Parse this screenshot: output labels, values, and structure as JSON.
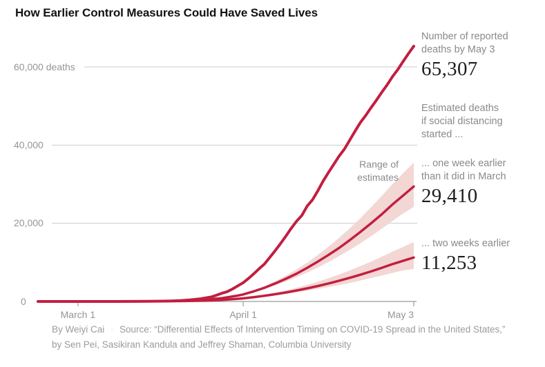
{
  "page": {
    "title": "How Earlier Control Measures Could Have Saved Lives"
  },
  "chart_data": {
    "type": "line",
    "title": "How Earlier Control Measures Could Have Saved Lives",
    "xlabel": "",
    "ylabel": "deaths",
    "grid": true,
    "x_axis": {
      "unit": "days since March 1",
      "ticks": [
        {
          "day": 0,
          "label": "March 1"
        },
        {
          "day": 31,
          "label": "April 1"
        },
        {
          "day": 63,
          "label": "May 3"
        }
      ]
    },
    "y_axis": {
      "range": [
        0,
        60000
      ],
      "gridlines": [
        {
          "value": 60000,
          "label": "60,000 deaths"
        },
        {
          "value": 40000,
          "label": "40,000"
        },
        {
          "value": 20000,
          "label": "20,000"
        },
        {
          "value": 0,
          "label": "0"
        }
      ]
    },
    "band_label": "Range of estimates",
    "series": [
      {
        "name": "reported_deaths",
        "end_label": "Number of reported deaths by May 3",
        "end_value": 65307,
        "points": [
          [
            -7.5,
            0
          ],
          [
            0,
            1
          ],
          [
            7,
            11
          ],
          [
            10,
            30
          ],
          [
            13,
            49
          ],
          [
            15,
            69
          ],
          [
            17,
            110
          ],
          [
            19,
            210
          ],
          [
            21,
            390
          ],
          [
            23,
            680
          ],
          [
            25,
            1150
          ],
          [
            26,
            1600
          ],
          [
            27,
            2100
          ],
          [
            28,
            2500
          ],
          [
            29,
            3200
          ],
          [
            30,
            4000
          ],
          [
            31,
            4800
          ],
          [
            32,
            5900
          ],
          [
            33,
            7100
          ],
          [
            34,
            8400
          ],
          [
            35,
            9600
          ],
          [
            36,
            11300
          ],
          [
            37,
            13000
          ],
          [
            38,
            14800
          ],
          [
            39,
            16700
          ],
          [
            40,
            18700
          ],
          [
            41,
            20500
          ],
          [
            42,
            22000
          ],
          [
            43,
            24400
          ],
          [
            44,
            26000
          ],
          [
            45,
            28300
          ],
          [
            46,
            30800
          ],
          [
            47,
            33000
          ],
          [
            48,
            35100
          ],
          [
            49,
            37200
          ],
          [
            50,
            39000
          ],
          [
            51,
            41300
          ],
          [
            52,
            43600
          ],
          [
            53,
            45800
          ],
          [
            54,
            47600
          ],
          [
            55,
            49600
          ],
          [
            56,
            51500
          ],
          [
            57,
            53500
          ],
          [
            58,
            55400
          ],
          [
            59,
            57500
          ],
          [
            60,
            59300
          ],
          [
            61,
            61400
          ],
          [
            62,
            63400
          ],
          [
            63,
            65307
          ]
        ]
      },
      {
        "name": "one_week_earlier",
        "end_label": "... one week earlier than it did in March",
        "end_value": 29410,
        "points": [
          [
            -7.5,
            0
          ],
          [
            0,
            0
          ],
          [
            10,
            25
          ],
          [
            15,
            70
          ],
          [
            20,
            200
          ],
          [
            24,
            480
          ],
          [
            27,
            850
          ],
          [
            30,
            1500
          ],
          [
            31,
            1800
          ],
          [
            33,
            2600
          ],
          [
            35,
            3500
          ],
          [
            37,
            4600
          ],
          [
            39,
            5800
          ],
          [
            41,
            7100
          ],
          [
            43,
            8600
          ],
          [
            45,
            10200
          ],
          [
            47,
            11900
          ],
          [
            49,
            13700
          ],
          [
            51,
            15700
          ],
          [
            53,
            17800
          ],
          [
            55,
            20000
          ],
          [
            57,
            22300
          ],
          [
            59,
            24800
          ],
          [
            61,
            27100
          ],
          [
            63,
            29410
          ]
        ],
        "band": [
          [
            31,
            1800,
            1800
          ],
          [
            33,
            2450,
            2800
          ],
          [
            35,
            3200,
            3900
          ],
          [
            37,
            4100,
            5200
          ],
          [
            39,
            5100,
            6600
          ],
          [
            41,
            6200,
            8200
          ],
          [
            43,
            7400,
            9900
          ],
          [
            45,
            8700,
            11900
          ],
          [
            47,
            10100,
            14000
          ],
          [
            49,
            11600,
            16300
          ],
          [
            51,
            13200,
            18700
          ],
          [
            53,
            14900,
            21300
          ],
          [
            55,
            16700,
            24100
          ],
          [
            57,
            18600,
            27000
          ],
          [
            59,
            20600,
            30000
          ],
          [
            61,
            22500,
            32800
          ],
          [
            63,
            24200,
            35500
          ]
        ]
      },
      {
        "name": "two_weeks_earlier",
        "end_label": "... two weeks earlier",
        "end_value": 11253,
        "points": [
          [
            -7.5,
            0
          ],
          [
            0,
            0
          ],
          [
            10,
            12
          ],
          [
            15,
            35
          ],
          [
            20,
            100
          ],
          [
            24,
            230
          ],
          [
            27,
            400
          ],
          [
            30,
            680
          ],
          [
            31,
            800
          ],
          [
            33,
            1100
          ],
          [
            35,
            1450
          ],
          [
            37,
            1850
          ],
          [
            39,
            2300
          ],
          [
            41,
            2800
          ],
          [
            43,
            3350
          ],
          [
            45,
            3950
          ],
          [
            47,
            4600
          ],
          [
            49,
            5300
          ],
          [
            51,
            6050
          ],
          [
            53,
            6850
          ],
          [
            55,
            7700
          ],
          [
            57,
            8600
          ],
          [
            59,
            9550
          ],
          [
            61,
            10400
          ],
          [
            63,
            11253
          ]
        ],
        "band": [
          [
            31,
            800,
            800
          ],
          [
            33,
            1000,
            1250
          ],
          [
            35,
            1300,
            1700
          ],
          [
            37,
            1600,
            2250
          ],
          [
            39,
            1950,
            2850
          ],
          [
            41,
            2350,
            3500
          ],
          [
            43,
            2750,
            4250
          ],
          [
            45,
            3200,
            5050
          ],
          [
            47,
            3700,
            5950
          ],
          [
            49,
            4200,
            6900
          ],
          [
            51,
            4750,
            7950
          ],
          [
            53,
            5350,
            9050
          ],
          [
            55,
            6000,
            10200
          ],
          [
            57,
            6650,
            11450
          ],
          [
            59,
            7300,
            12750
          ],
          [
            61,
            7950,
            13950
          ],
          [
            63,
            8300,
            15200
          ]
        ]
      }
    ]
  },
  "annotations": {
    "reported": {
      "label": "Number of reported\ndeaths by May 3",
      "value": "65,307"
    },
    "estimated_intro": "Estimated deaths\nif social distancing\nstarted ...",
    "one_week": {
      "label": "... one week earlier\nthan it did in March",
      "value": "29,410"
    },
    "two_weeks": {
      "label": "... two weeks earlier",
      "value": "11,253"
    },
    "range": "Range of\nestimates"
  },
  "credits": {
    "byline": "By Weiyi Cai",
    "separator": "·",
    "source_line1": "Source: “Differential Effects of Intervention Timing on COVID-19 Spread in the United States,”",
    "source_line2": "by Sen Pei, Sasikiran Kandula and Jeffrey Shaman, Columbia University"
  },
  "colors": {
    "line_red": "#c21e40",
    "band_pink": "#f2d7d4",
    "gridline": "#cbcbcb",
    "axis": "#9b9b9b",
    "label_gray": "#949494",
    "title": "#121212",
    "number": "#1d1d1d"
  }
}
